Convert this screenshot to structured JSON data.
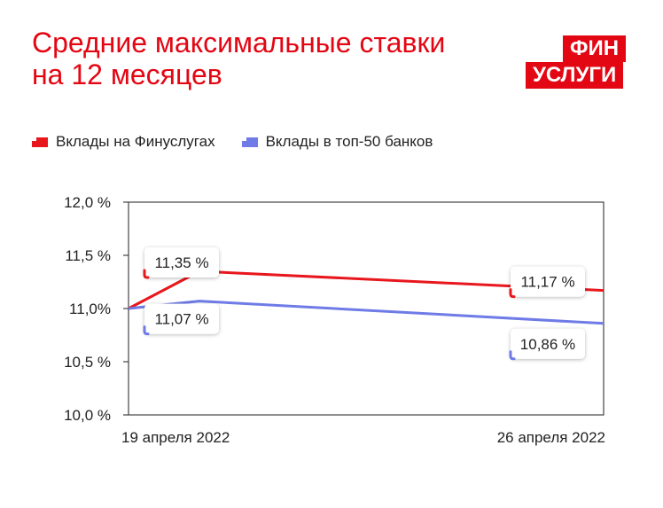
{
  "title_lines": [
    "Средние максимальные ставки",
    "на 12 месяцев"
  ],
  "logo": {
    "line1": "ФИН",
    "line2": "УСЛУГИ"
  },
  "colors": {
    "brand": "#e30613",
    "series_fin": "#e8171d",
    "series_top50": "#6f7be6",
    "grid": "#444444"
  },
  "chart_data": {
    "type": "line",
    "title": "Средние максимальные ставки на 12 месяцев",
    "x": [
      "19 апреля 2022",
      "26 апреля 2022"
    ],
    "yticks": [
      "12,0 %",
      "11,5 %",
      "11,0%",
      "10,5 %",
      "10,0 %"
    ],
    "ylim": [
      10.0,
      12.0
    ],
    "legend_position": "top-left",
    "grid": false,
    "series": [
      {
        "name": "Вклады на Финуслугах",
        "values": [
          11.35,
          11.17
        ],
        "labels": [
          "11,35 %",
          "11,17 %"
        ],
        "color": "#e8171d"
      },
      {
        "name": "Вклады в топ-50 банков",
        "values": [
          11.07,
          10.86
        ],
        "labels": [
          "11,07 %",
          "10,86 %"
        ],
        "color": "#6f7be6"
      }
    ]
  }
}
